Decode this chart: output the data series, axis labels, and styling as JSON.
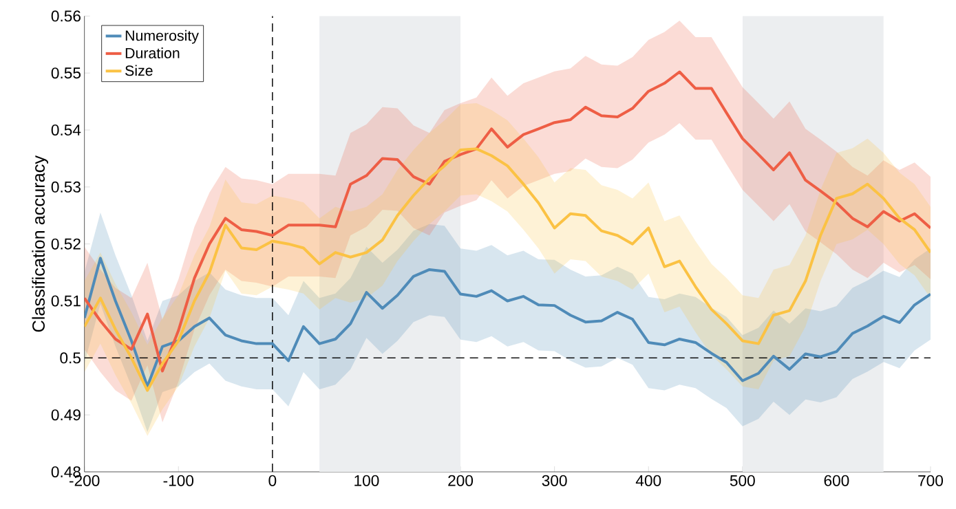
{
  "chart_data": {
    "type": "line",
    "ylabel": "Classification accuracy",
    "x": [
      -200,
      -183,
      -167,
      -150,
      -133,
      -117,
      -100,
      -83,
      -67,
      -50,
      -33,
      -17,
      0,
      17,
      33,
      50,
      67,
      83,
      100,
      117,
      133,
      150,
      167,
      183,
      200,
      217,
      233,
      250,
      267,
      283,
      300,
      317,
      333,
      350,
      367,
      383,
      400,
      417,
      433,
      450,
      467,
      483,
      500,
      517,
      533,
      550,
      567,
      583,
      600,
      617,
      633,
      650,
      667,
      683,
      700
    ],
    "series": [
      {
        "name": "Numerosity",
        "color": "#4f8bb8",
        "values": [
          0.507,
          0.5175,
          0.51,
          0.503,
          0.495,
          0.502,
          0.503,
          0.5055,
          0.507,
          0.504,
          0.503,
          0.5025,
          0.5025,
          0.4995,
          0.5055,
          0.5025,
          0.5033,
          0.506,
          0.5115,
          0.5087,
          0.511,
          0.5143,
          0.5155,
          0.5152,
          0.5112,
          0.5108,
          0.5118,
          0.51,
          0.5108,
          0.5093,
          0.5092,
          0.5075,
          0.5063,
          0.5065,
          0.508,
          0.5068,
          0.5027,
          0.5023,
          0.5033,
          0.5027,
          0.5008,
          0.4992,
          0.496,
          0.4973,
          0.5003,
          0.498,
          0.5007,
          0.5002,
          0.5011,
          0.5043,
          0.5056,
          0.5073,
          0.5062,
          0.5093,
          0.5112
        ],
        "lower": [
          0.499,
          0.5095,
          0.502,
          0.495,
          0.487,
          0.494,
          0.495,
          0.4975,
          0.499,
          0.496,
          0.495,
          0.4945,
          0.4945,
          0.4915,
          0.4975,
          0.4945,
          0.4953,
          0.498,
          0.5035,
          0.5007,
          0.503,
          0.5063,
          0.5075,
          0.5072,
          0.5032,
          0.5028,
          0.5038,
          0.502,
          0.5028,
          0.5013,
          0.5012,
          0.4995,
          0.4983,
          0.4985,
          0.5,
          0.4988,
          0.4947,
          0.4943,
          0.4953,
          0.4947,
          0.4928,
          0.4912,
          0.488,
          0.4893,
          0.4923,
          0.49,
          0.4927,
          0.4922,
          0.4931,
          0.4963,
          0.4976,
          0.4993,
          0.4982,
          0.5013,
          0.5032
        ],
        "upper": [
          0.515,
          0.5255,
          0.518,
          0.511,
          0.503,
          0.51,
          0.511,
          0.5135,
          0.515,
          0.512,
          0.511,
          0.5105,
          0.5105,
          0.5075,
          0.5135,
          0.5105,
          0.5113,
          0.514,
          0.5195,
          0.5167,
          0.519,
          0.5223,
          0.5235,
          0.5232,
          0.5192,
          0.5188,
          0.5198,
          0.518,
          0.5188,
          0.5173,
          0.5172,
          0.5155,
          0.5143,
          0.5145,
          0.516,
          0.5148,
          0.5107,
          0.5103,
          0.5113,
          0.5107,
          0.5088,
          0.5072,
          0.504,
          0.5053,
          0.5083,
          0.506,
          0.5087,
          0.5082,
          0.5091,
          0.5123,
          0.5136,
          0.5153,
          0.5142,
          0.5173,
          0.5192
        ]
      },
      {
        "name": "Duration",
        "color": "#ee5e45",
        "values": [
          0.5105,
          0.5065,
          0.5033,
          0.5015,
          0.5077,
          0.4977,
          0.5048,
          0.514,
          0.52,
          0.5245,
          0.5225,
          0.5222,
          0.5215,
          0.5233,
          0.5233,
          0.5233,
          0.523,
          0.5305,
          0.532,
          0.535,
          0.5348,
          0.5318,
          0.5305,
          0.5345,
          0.5357,
          0.5367,
          0.5402,
          0.537,
          0.5392,
          0.5402,
          0.5413,
          0.5418,
          0.544,
          0.5425,
          0.5423,
          0.5438,
          0.5468,
          0.5482,
          0.5502,
          0.5473,
          0.5473,
          0.543,
          0.5385,
          0.5357,
          0.533,
          0.536,
          0.5312,
          0.5293,
          0.5272,
          0.5245,
          0.523,
          0.5257,
          0.524,
          0.5253,
          0.5228
        ],
        "lower": [
          0.5015,
          0.4975,
          0.4943,
          0.4925,
          0.4987,
          0.4887,
          0.4958,
          0.505,
          0.511,
          0.5155,
          0.5135,
          0.5132,
          0.5125,
          0.5143,
          0.5143,
          0.5143,
          0.514,
          0.5215,
          0.523,
          0.526,
          0.5258,
          0.5228,
          0.5215,
          0.5255,
          0.5267,
          0.5277,
          0.5312,
          0.528,
          0.5302,
          0.5312,
          0.5323,
          0.5328,
          0.535,
          0.5335,
          0.5333,
          0.5348,
          0.5378,
          0.5392,
          0.5412,
          0.5383,
          0.5383,
          0.534,
          0.5295,
          0.5267,
          0.524,
          0.527,
          0.5222,
          0.5203,
          0.5182,
          0.5155,
          0.514,
          0.5167,
          0.515,
          0.5163,
          0.5138
        ],
        "upper": [
          0.5195,
          0.5155,
          0.5123,
          0.5105,
          0.5167,
          0.5067,
          0.5138,
          0.523,
          0.529,
          0.5335,
          0.5315,
          0.5312,
          0.5305,
          0.5323,
          0.5323,
          0.5323,
          0.532,
          0.5395,
          0.541,
          0.544,
          0.5438,
          0.5408,
          0.5395,
          0.5435,
          0.5447,
          0.5457,
          0.5492,
          0.546,
          0.5482,
          0.5492,
          0.5503,
          0.5508,
          0.553,
          0.5515,
          0.5513,
          0.5528,
          0.5558,
          0.5572,
          0.5592,
          0.5563,
          0.5563,
          0.552,
          0.5475,
          0.5447,
          0.542,
          0.545,
          0.5402,
          0.5383,
          0.5362,
          0.5335,
          0.532,
          0.5347,
          0.533,
          0.5343,
          0.5318
        ]
      },
      {
        "name": "Size",
        "color": "#fbc244",
        "values": [
          0.5055,
          0.5105,
          0.505,
          0.5,
          0.4943,
          0.499,
          0.503,
          0.51,
          0.515,
          0.5233,
          0.5193,
          0.519,
          0.5205,
          0.52,
          0.5193,
          0.5165,
          0.5185,
          0.5177,
          0.5185,
          0.5207,
          0.525,
          0.5285,
          0.5315,
          0.5337,
          0.5365,
          0.5367,
          0.5355,
          0.5337,
          0.5305,
          0.5272,
          0.5228,
          0.5253,
          0.525,
          0.5223,
          0.5215,
          0.52,
          0.5228,
          0.516,
          0.517,
          0.5125,
          0.5085,
          0.506,
          0.503,
          0.5025,
          0.5075,
          0.5083,
          0.5135,
          0.5215,
          0.528,
          0.5288,
          0.5305,
          0.528,
          0.5245,
          0.5225,
          0.5185
        ],
        "lower": [
          0.4975,
          0.5025,
          0.497,
          0.492,
          0.4863,
          0.491,
          0.495,
          0.502,
          0.507,
          0.5153,
          0.5113,
          0.511,
          0.5125,
          0.512,
          0.5113,
          0.5085,
          0.5105,
          0.5097,
          0.5105,
          0.5127,
          0.517,
          0.5205,
          0.5235,
          0.5257,
          0.5285,
          0.5287,
          0.5275,
          0.5257,
          0.5225,
          0.5192,
          0.5148,
          0.5173,
          0.517,
          0.5143,
          0.5135,
          0.512,
          0.5148,
          0.508,
          0.509,
          0.5045,
          0.5005,
          0.498,
          0.495,
          0.4945,
          0.4995,
          0.5003,
          0.5055,
          0.5135,
          0.52,
          0.5208,
          0.5225,
          0.52,
          0.5165,
          0.5145,
          0.5105
        ],
        "upper": [
          0.5135,
          0.5185,
          0.513,
          0.508,
          0.5023,
          0.507,
          0.511,
          0.518,
          0.523,
          0.5313,
          0.5273,
          0.527,
          0.5285,
          0.528,
          0.5273,
          0.5245,
          0.5265,
          0.5257,
          0.5265,
          0.5287,
          0.533,
          0.5365,
          0.5395,
          0.5417,
          0.5445,
          0.5447,
          0.5435,
          0.5417,
          0.5385,
          0.5352,
          0.5308,
          0.5333,
          0.533,
          0.5303,
          0.5295,
          0.528,
          0.5308,
          0.524,
          0.525,
          0.5205,
          0.5165,
          0.514,
          0.511,
          0.5105,
          0.5155,
          0.5163,
          0.5215,
          0.5295,
          0.536,
          0.5368,
          0.5385,
          0.536,
          0.5325,
          0.5305,
          0.5265
        ]
      }
    ],
    "xlim": [
      -200,
      700
    ],
    "ylim": [
      0.48,
      0.56
    ],
    "xticks": [
      -200,
      -100,
      0,
      100,
      200,
      300,
      400,
      500,
      600,
      700
    ],
    "yticks": [
      0.48,
      0.49,
      0.5,
      0.51,
      0.52,
      0.53,
      0.54,
      0.55,
      0.56
    ],
    "ref_lines": [
      {
        "axis": "x",
        "value": 0,
        "line_style": "dashed",
        "color": "#000000"
      },
      {
        "axis": "y",
        "value": 0.5,
        "line_style": "dashed",
        "color": "#000000"
      }
    ],
    "bands": [
      {
        "axis": "x",
        "from": 50,
        "to": 200,
        "color": "#eceef0"
      },
      {
        "axis": "x",
        "from": 500,
        "to": 650,
        "color": "#eceef0"
      }
    ],
    "legend": "top left"
  }
}
